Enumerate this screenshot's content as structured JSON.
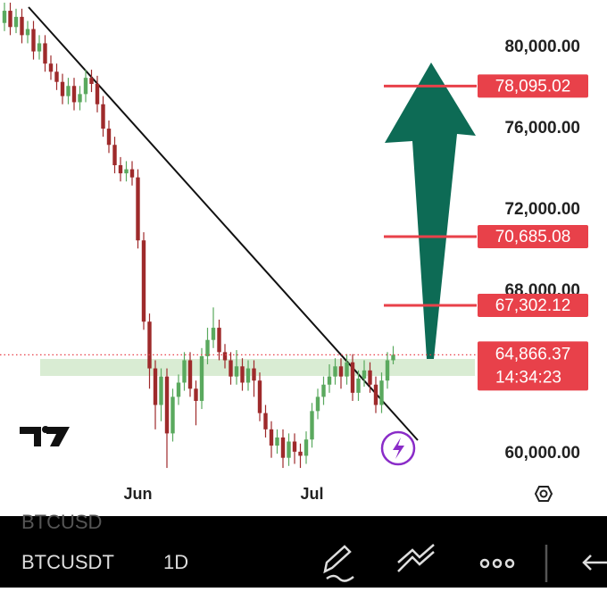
{
  "chart_data": {
    "type": "candlestick",
    "categories": [
      null,
      null,
      null,
      null,
      null,
      null,
      null,
      null,
      null,
      null,
      null,
      null,
      null,
      null,
      null,
      null,
      null,
      null,
      null,
      null,
      null,
      null,
      null,
      "Jun",
      null,
      null,
      null,
      null,
      null,
      null,
      null,
      null,
      null,
      null,
      null,
      null,
      null,
      null,
      null,
      null,
      null,
      null,
      null,
      null,
      null,
      null,
      null,
      null,
      null,
      null,
      null,
      null,
      null,
      "Jul",
      null,
      null,
      null,
      null,
      null,
      null,
      null,
      null,
      null,
      null,
      null,
      null,
      null,
      null
    ],
    "open": [
      81200,
      81800,
      81000,
      81500,
      80600,
      80900,
      79800,
      80200,
      79200,
      78800,
      78300,
      77600,
      78100,
      77300,
      77700,
      78500,
      78200,
      77200,
      76000,
      75200,
      74200,
      73800,
      74000,
      73600,
      70500,
      66500,
      64200,
      62400,
      63800,
      61000,
      62800,
      63500,
      64600,
      63200,
      62600,
      64800,
      65600,
      66200,
      65000,
      64600,
      63800,
      64300,
      63500,
      64200,
      63600,
      62000,
      61200,
      60400,
      60800,
      59800,
      60600,
      60100,
      59900,
      60700,
      62100,
      62800,
      63400,
      63800,
      64300,
      63800,
      64500,
      63000,
      63700,
      64100,
      63400,
      62400,
      63600,
      64600
    ],
    "high": [
      82200,
      82200,
      81900,
      81900,
      81300,
      81300,
      80600,
      80600,
      79600,
      79200,
      78700,
      78500,
      78500,
      78100,
      78900,
      78900,
      78600,
      77600,
      76400,
      75600,
      74600,
      74400,
      74400,
      74000,
      70900,
      66900,
      64600,
      64200,
      64200,
      63200,
      63900,
      65000,
      65000,
      63600,
      65200,
      66200,
      67200,
      66600,
      65400,
      65000,
      65100,
      64700,
      64600,
      64600,
      64000,
      62400,
      61600,
      61200,
      61200,
      61000,
      61000,
      60500,
      61100,
      62500,
      63200,
      63800,
      64400,
      64700,
      64700,
      64900,
      64900,
      64100,
      64600,
      64500,
      63800,
      64000,
      65000,
      65300
    ],
    "low": [
      80800,
      80600,
      80700,
      80200,
      80200,
      79400,
      79400,
      78800,
      78400,
      77900,
      77200,
      77200,
      76900,
      76900,
      77300,
      77800,
      76800,
      75600,
      74800,
      73800,
      73400,
      73400,
      73200,
      70100,
      66100,
      63200,
      61200,
      61600,
      59300,
      60600,
      62400,
      63100,
      62800,
      61400,
      62200,
      64400,
      65200,
      64600,
      64200,
      63400,
      63400,
      63100,
      63100,
      62800,
      61600,
      60800,
      59800,
      60000,
      59300,
      59400,
      59500,
      59300,
      59500,
      60300,
      61700,
      62400,
      63000,
      63400,
      63200,
      63400,
      62600,
      62600,
      63300,
      63000,
      62000,
      62000,
      63200,
      64400
    ],
    "close": [
      81800,
      81000,
      81500,
      80600,
      80900,
      79800,
      80200,
      79200,
      78800,
      78300,
      77600,
      78100,
      77300,
      77700,
      78500,
      78200,
      77200,
      76000,
      75200,
      74200,
      73800,
      74000,
      73600,
      70500,
      66500,
      64200,
      62400,
      63800,
      61000,
      62800,
      63500,
      64600,
      63200,
      62600,
      64800,
      65600,
      66200,
      65000,
      64600,
      63800,
      64300,
      63500,
      64200,
      63600,
      62000,
      61200,
      60400,
      60800,
      59800,
      60600,
      60100,
      59900,
      60700,
      62100,
      62800,
      63400,
      63800,
      64300,
      63800,
      64500,
      63000,
      63700,
      64100,
      63400,
      62400,
      63600,
      64600,
      64866.37
    ],
    "up_color": "#5aa95e",
    "down_color": "#9e2a2b",
    "ylim": [
      58600,
      82330
    ],
    "yticks": [
      {
        "value": 60000,
        "label": "60,000.00"
      },
      {
        "value": 68000,
        "label": "68,000.00"
      },
      {
        "value": 72000,
        "label": "72,000.00"
      },
      {
        "value": 76000,
        "label": "76,000.00"
      },
      {
        "value": 80000,
        "label": "80,000.00"
      }
    ],
    "levels": [
      {
        "value": 78095.02,
        "label": "78,095.02"
      },
      {
        "value": 70685.08,
        "label": "70,685.08"
      },
      {
        "value": 67302.12,
        "label": "67,302.12"
      }
    ],
    "level_color": "#e8414a",
    "last_price": {
      "value": 64866.37,
      "label": "64,866.37"
    },
    "countdown": "14:34:23"
  },
  "toolbar": {
    "previous_symbol": "BTCUSD",
    "symbol": "BTCUSDT",
    "interval": "1D"
  }
}
